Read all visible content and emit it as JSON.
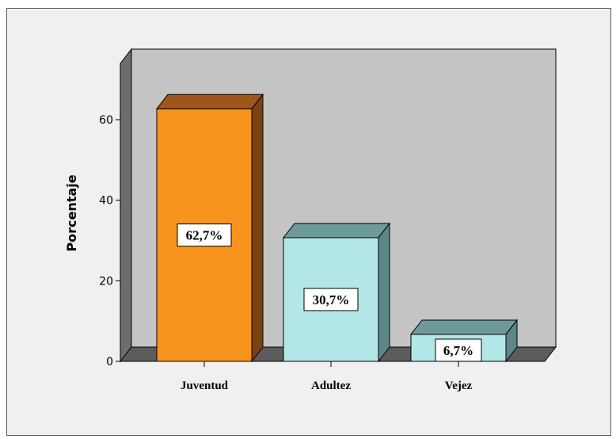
{
  "chart_data": {
    "type": "bar",
    "style": "3d",
    "categories": [
      "Juventud",
      "Adultez",
      "Vejez"
    ],
    "values": [
      62.7,
      30.7,
      6.7
    ],
    "data_labels": [
      "62,7%",
      "30,7%",
      "6,7%"
    ],
    "ylabel": "Porcentaje",
    "xlabel": "",
    "title": "",
    "ylim": [
      0,
      60
    ],
    "yticks": [
      0,
      20,
      40,
      60
    ],
    "grid": false,
    "colors": {
      "bars": [
        "#f7941d",
        "#b3e6e6",
        "#b3e6e6"
      ],
      "bar_tops": [
        "#a0561a",
        "#6e9a9a",
        "#6e9a9a"
      ],
      "bar_sides": [
        "#7a4210",
        "#5e8686",
        "#5e8686"
      ],
      "plot_back": "#c4c4c4",
      "plot_side": "#6e6e6e",
      "floor": "#5c5c5c",
      "background": "#f0f0f0"
    }
  }
}
